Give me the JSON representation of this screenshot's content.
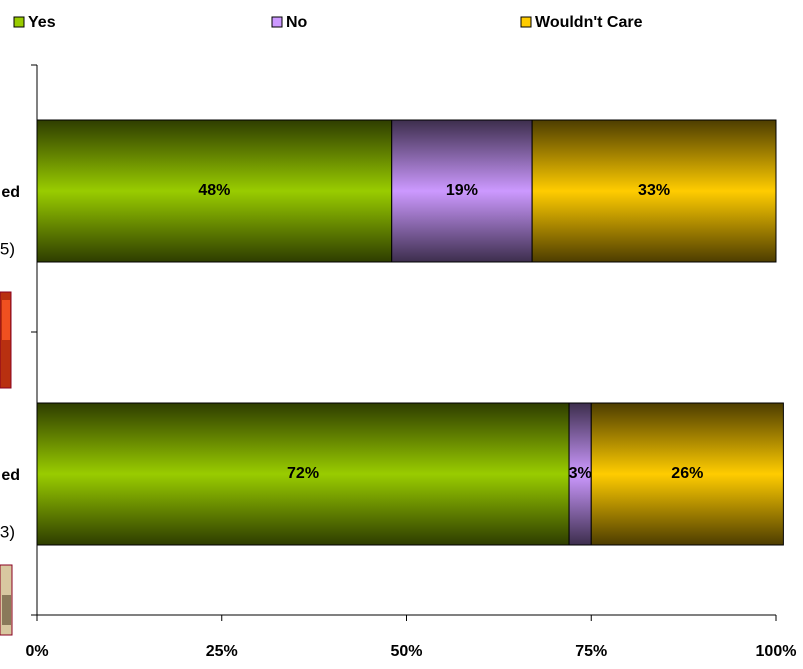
{
  "chart_data": {
    "type": "stacked-bar-horizontal",
    "categories": [
      [
        "ed",
        "5)"
      ],
      [
        "ed",
        "3)"
      ]
    ],
    "series": [
      {
        "name": "Yes",
        "color": "#99cc00",
        "values": [
          48,
          72
        ],
        "value_labels": [
          "48%",
          "72%"
        ]
      },
      {
        "name": "No",
        "color": "#cc99ff",
        "values": [
          19,
          3
        ],
        "value_labels": [
          "19%",
          "3%"
        ]
      },
      {
        "name": "Wouldn't Care",
        "color": "#ffcc00",
        "values": [
          33,
          26
        ],
        "value_labels": [
          "33%",
          "26%"
        ]
      }
    ],
    "xlim": [
      0,
      100
    ],
    "xticks": [
      {
        "value": 0,
        "label": "0%"
      },
      {
        "value": 25,
        "label": "25%"
      },
      {
        "value": 50,
        "label": "50%"
      },
      {
        "value": 75,
        "label": "75%"
      },
      {
        "value": 100,
        "label": "100%"
      }
    ],
    "legend": "top"
  }
}
